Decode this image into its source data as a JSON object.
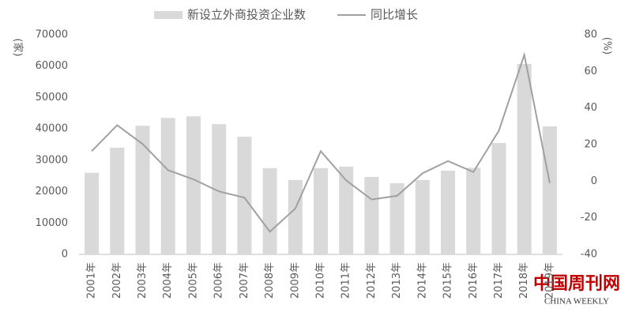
{
  "chart_data": {
    "type": "combo",
    "categories": [
      "2001年",
      "2002年",
      "2003年",
      "2004年",
      "2005年",
      "2006年",
      "2007年",
      "2008年",
      "2009年",
      "2010年",
      "2011年",
      "2012年",
      "2013年",
      "2014年",
      "2015年",
      "2016年",
      "2017年",
      "2018年",
      "2019年"
    ],
    "series": [
      {
        "name": "新设立外商投资企业数",
        "type": "bar",
        "color": "#d9d9d9",
        "axis": "y",
        "values": [
          26000,
          34000,
          41000,
          43500,
          44000,
          41500,
          37500,
          27500,
          23700,
          27500,
          28000,
          24700,
          22700,
          23700,
          26700,
          27600,
          35500,
          60700,
          40800
        ]
      },
      {
        "name": "同比增长",
        "type": "line",
        "color": "#a0a0a0",
        "axis": "y2",
        "values": [
          16.4,
          30.6,
          20.3,
          6,
          1,
          -5.6,
          -9,
          -27.6,
          -15,
          16.4,
          0.4,
          -10,
          -8,
          4.3,
          11,
          5,
          27.6,
          69,
          -1
        ]
      }
    ],
    "y_label": "(家)",
    "y2_label": "(%)",
    "ylim": [
      0,
      70000
    ],
    "yticks": [
      0,
      10000,
      20000,
      30000,
      40000,
      50000,
      60000,
      70000
    ],
    "y2lim": [
      -40,
      80
    ],
    "y2ticks": [
      -40,
      -20,
      0,
      20,
      40,
      60,
      80
    ],
    "grid": false,
    "watermark": {
      "title": "中国周刊网",
      "subtitle": "CHINA WEEKLY"
    }
  }
}
